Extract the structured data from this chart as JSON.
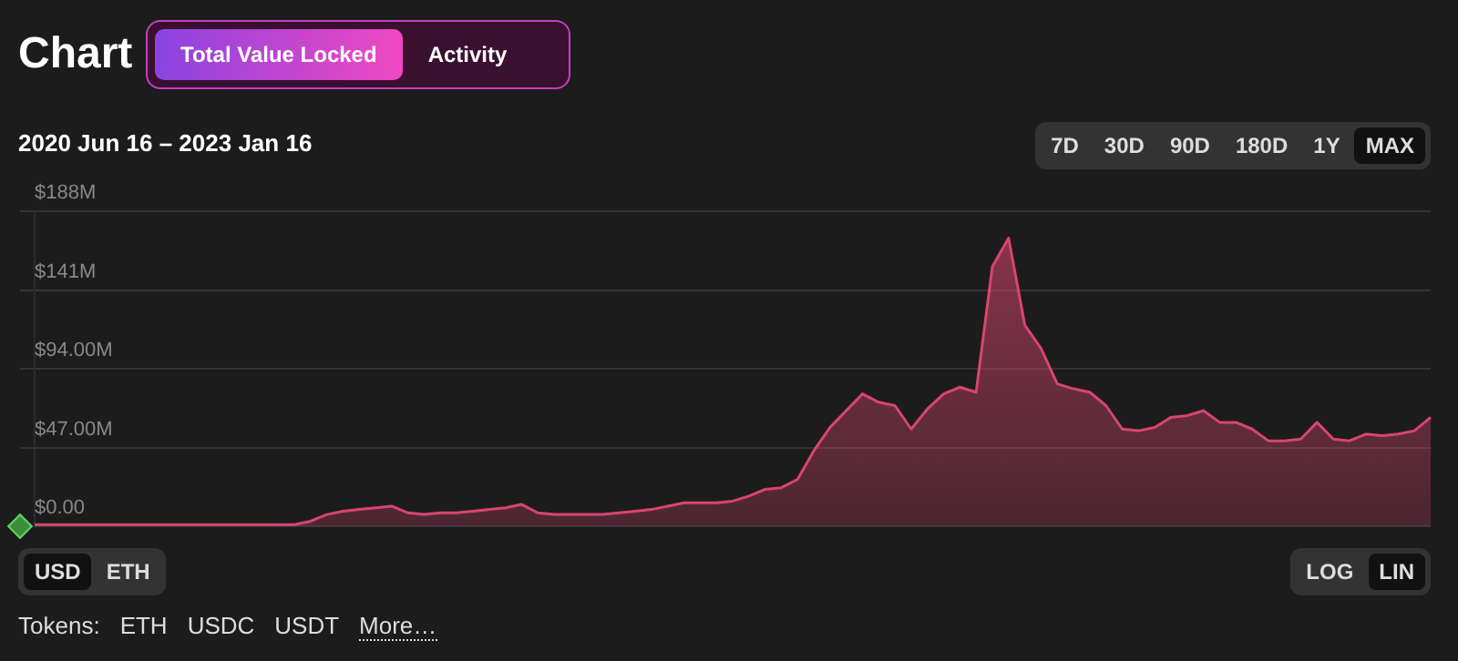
{
  "chart_data": {
    "type": "area",
    "title": "Chart",
    "subtitle": "2020 Jun 16 – 2023 Jan 16",
    "annotations": [
      "Total Value Locked",
      "Activity",
      "7D",
      "30D",
      "90D",
      "180D",
      "1Y",
      "MAX",
      "USD",
      "ETH",
      "LOG",
      "LIN",
      "Tokens:",
      "ETH",
      "USDC",
      "USDT",
      "More…"
    ],
    "categories": [
      null,
      null,
      null,
      null,
      null,
      null,
      null,
      null,
      null,
      null,
      null,
      null,
      null,
      null,
      null,
      null,
      null,
      null,
      null,
      null,
      null,
      null,
      null,
      null,
      null,
      null,
      null,
      null,
      null,
      null,
      null,
      null,
      null,
      null,
      null,
      null,
      null,
      null,
      null,
      null,
      null,
      null,
      null,
      null,
      null,
      null,
      null,
      null,
      null,
      null,
      null,
      null,
      null,
      null,
      null,
      null,
      null,
      null,
      null,
      null,
      null,
      null,
      null,
      null,
      null,
      null,
      null,
      null,
      null,
      null,
      null,
      null,
      null,
      null,
      null,
      null,
      null,
      null,
      null,
      null,
      null,
      null,
      null,
      null,
      null,
      null,
      null
    ],
    "series": [
      {
        "color": "#d8456f",
        "values": [
          1,
          1,
          1,
          1,
          1,
          1,
          1,
          1,
          1,
          1,
          1,
          1,
          1,
          1,
          1,
          1,
          1,
          3,
          7,
          9,
          10,
          11,
          12,
          8,
          7,
          8,
          8,
          9,
          10,
          11,
          13,
          8,
          7,
          7,
          7,
          7,
          8,
          9,
          10,
          12,
          14,
          14,
          14,
          15,
          18,
          22,
          23,
          28,
          45,
          59,
          69,
          79,
          74,
          72,
          58,
          70,
          79,
          83,
          80,
          155,
          172,
          120,
          106,
          85,
          82,
          80,
          72,
          58,
          57,
          59,
          65,
          66,
          69,
          62,
          62,
          58,
          51,
          51,
          52,
          62,
          52,
          51,
          55,
          54,
          55,
          57,
          65
        ]
      }
    ],
    "ylim": [
      0,
      188
    ],
    "yticks": [
      {
        "value": 0,
        "label": "$0.00"
      },
      {
        "value": 47,
        "label": "$47.00M"
      },
      {
        "value": 94,
        "label": "$94.00M"
      },
      {
        "value": 141,
        "label": "$141M"
      },
      {
        "value": 188,
        "label": "$188M"
      }
    ],
    "grid": "y",
    "legend": false,
    "tick_labels": "y"
  }
}
